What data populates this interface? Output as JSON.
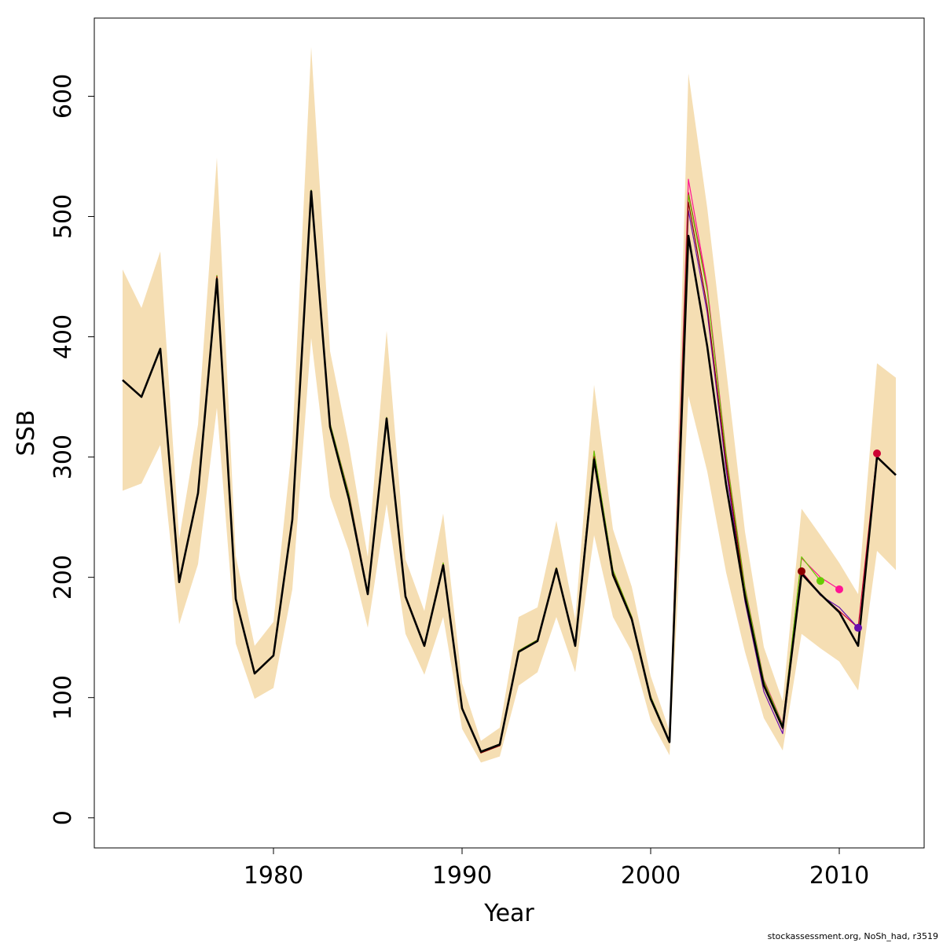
{
  "chart_data": {
    "type": "line",
    "title": "",
    "xlabel": "Year",
    "ylabel": "SSB",
    "xlim": [
      1970.5,
      2014.5
    ],
    "ylim": [
      -25,
      665
    ],
    "x_ticks": [
      1980,
      1990,
      2000,
      2010
    ],
    "y_ticks": [
      0,
      100,
      200,
      300,
      400,
      500,
      600
    ],
    "grid": false,
    "legend": "none",
    "colors": {
      "band": "#f5deb3",
      "main": "#000000",
      "retro": [
        "#cc0033",
        "#ff1493",
        "#66cc00",
        "#6a0dad",
        "#8b0000"
      ]
    },
    "band": {
      "name": "confidence interval",
      "x": [
        1972,
        1973,
        1974,
        1975,
        1976,
        1977,
        1978,
        1979,
        1980,
        1981,
        1982,
        1983,
        1984,
        1985,
        1986,
        1987,
        1988,
        1989,
        1990,
        1991,
        1992,
        1993,
        1994,
        1995,
        1996,
        1997,
        1998,
        1999,
        2000,
        2001,
        2002,
        2003,
        2004,
        2005,
        2006,
        2007,
        2008,
        2009,
        2010,
        2011,
        2012,
        2013
      ],
      "upper": [
        456,
        424,
        471,
        232,
        327,
        549,
        218,
        143,
        163,
        312,
        641,
        388,
        310,
        217,
        405,
        215,
        172,
        253,
        112,
        64,
        75,
        167,
        175,
        247,
        165,
        360,
        240,
        192,
        118,
        72,
        619,
        507,
        373,
        238,
        142,
        97,
        257,
        235,
        212,
        186,
        378,
        366
      ],
      "lower": [
        272,
        278,
        310,
        161,
        211,
        341,
        145,
        99,
        108,
        190,
        399,
        267,
        222,
        158,
        261,
        153,
        119,
        167,
        74,
        46,
        51,
        110,
        121,
        167,
        121,
        235,
        167,
        138,
        81,
        52,
        351,
        288,
        204,
        138,
        83,
        56,
        153,
        141,
        130,
        106,
        222,
        206
      ]
    },
    "series": [
      {
        "x": [
          1972,
          1973,
          1974,
          1975,
          1976,
          1977,
          1978,
          1979,
          1980,
          1981,
          1982,
          1983,
          1984,
          1985,
          1986,
          1987,
          1988,
          1989,
          1990,
          1991,
          1992,
          1993,
          1994,
          1995,
          1996,
          1997,
          1998,
          1999,
          2000,
          2001,
          2002,
          2003,
          2004,
          2005,
          2006,
          2007,
          2008,
          2009,
          2010,
          2011,
          2012,
          2013
        ],
        "values": [
          364,
          350,
          390,
          196,
          270,
          448,
          182,
          120,
          135,
          248,
          521,
          325,
          265,
          186,
          332,
          184,
          143,
          210,
          91,
          55,
          61,
          138,
          147,
          207,
          143,
          298,
          202,
          165,
          99,
          63,
          484,
          392,
          277,
          184,
          110,
          75,
          203,
          186,
          171,
          143,
          300,
          285
        ],
        "style": "main"
      },
      {
        "x": [
          1972,
          1973,
          1974,
          1975,
          1976,
          1977,
          1978,
          1979,
          1980,
          1981,
          1982,
          1983,
          1984,
          1985,
          1986,
          1987,
          1988,
          1989,
          1990,
          1991,
          1992,
          1993,
          1994,
          1995,
          1996,
          1997,
          1998,
          1999,
          2000,
          2001,
          2002,
          2003,
          2004,
          2005,
          2006,
          2007,
          2008,
          2009,
          2010,
          2011,
          2012
        ],
        "values": [
          364,
          350,
          390,
          196,
          270,
          450,
          182,
          120,
          135,
          248,
          521,
          327,
          268,
          186,
          333,
          185,
          144,
          211,
          92,
          54,
          60,
          139,
          148,
          208,
          144,
          303,
          205,
          167,
          100,
          64,
          520,
          440,
          300,
          190,
          113,
          77,
          205,
          186,
          172,
          158,
          303
        ],
        "style": "retro",
        "end_marker": true
      },
      {
        "x": [
          1972,
          1973,
          1974,
          1975,
          1976,
          1977,
          1978,
          1979,
          1980,
          1981,
          1982,
          1983,
          1984,
          1985,
          1986,
          1987,
          1988,
          1989,
          1990,
          1991,
          1992,
          1993,
          1994,
          1995,
          1996,
          1997,
          1998,
          1999,
          2000,
          2001,
          2002,
          2003,
          2004,
          2005,
          2006,
          2007,
          2008,
          2009,
          2010
        ],
        "values": [
          364,
          350,
          390,
          196,
          270,
          451,
          182,
          120,
          135,
          249,
          522,
          328,
          270,
          187,
          333,
          185,
          144,
          212,
          92,
          54,
          61,
          139,
          148,
          208,
          144,
          305,
          206,
          167,
          101,
          64,
          531,
          442,
          303,
          192,
          115,
          78,
          216,
          200,
          190
        ],
        "style": "retro",
        "end_marker": true
      },
      {
        "x": [
          1972,
          1973,
          1974,
          1975,
          1976,
          1977,
          1978,
          1979,
          1980,
          1981,
          1982,
          1983,
          1984,
          1985,
          1986,
          1987,
          1988,
          1989,
          1990,
          1991,
          1992,
          1993,
          1994,
          1995,
          1996,
          1997,
          1998,
          1999,
          2000,
          2001,
          2002,
          2003,
          2004,
          2005,
          2006,
          2007,
          2008,
          2009
        ],
        "values": [
          364,
          350,
          390,
          196,
          270,
          451,
          182,
          120,
          135,
          249,
          522,
          328,
          269,
          187,
          333,
          185,
          144,
          212,
          92,
          54,
          61,
          139,
          148,
          208,
          144,
          305,
          206,
          167,
          101,
          64,
          518,
          438,
          302,
          191,
          114,
          77,
          217,
          197
        ],
        "style": "retro",
        "end_marker": true
      },
      {
        "x": [
          1972,
          1973,
          1974,
          1975,
          1976,
          1977,
          1978,
          1979,
          1980,
          1981,
          1982,
          1983,
          1984,
          1985,
          1986,
          1987,
          1988,
          1989,
          1990,
          1991,
          1992,
          1993,
          1994,
          1995,
          1996,
          1997,
          1998,
          1999,
          2000,
          2001,
          2002,
          2003,
          2004,
          2005,
          2006,
          2007,
          2008,
          2009,
          2010,
          2011
        ],
        "values": [
          364,
          350,
          390,
          196,
          270,
          448,
          182,
          120,
          135,
          248,
          520,
          325,
          265,
          186,
          332,
          184,
          143,
          210,
          91,
          55,
          61,
          138,
          147,
          207,
          143,
          299,
          203,
          165,
          99,
          63,
          505,
          420,
          290,
          180,
          105,
          70,
          204,
          185,
          175,
          158
        ],
        "style": "retro",
        "end_marker": true
      },
      {
        "x": [
          1972,
          1973,
          1974,
          1975,
          1976,
          1977,
          1978,
          1979,
          1980,
          1981,
          1982,
          1983,
          1984,
          1985,
          1986,
          1987,
          1988,
          1989,
          1990,
          1991,
          1992,
          1993,
          1994,
          1995,
          1996,
          1997,
          1998,
          1999,
          2000,
          2001,
          2002,
          2003,
          2004,
          2005,
          2006,
          2007,
          2008
        ],
        "values": [
          364,
          350,
          390,
          196,
          270,
          450,
          182,
          120,
          135,
          248,
          521,
          326,
          266,
          186,
          332,
          184,
          143,
          210,
          91,
          54,
          60,
          138,
          147,
          207,
          143,
          300,
          204,
          166,
          100,
          63,
          512,
          425,
          295,
          186,
          110,
          74,
          205
        ],
        "style": "retro",
        "end_marker": true
      }
    ]
  },
  "footer": {
    "credit": "stockassessment.org, NoSh_had, r3519"
  }
}
